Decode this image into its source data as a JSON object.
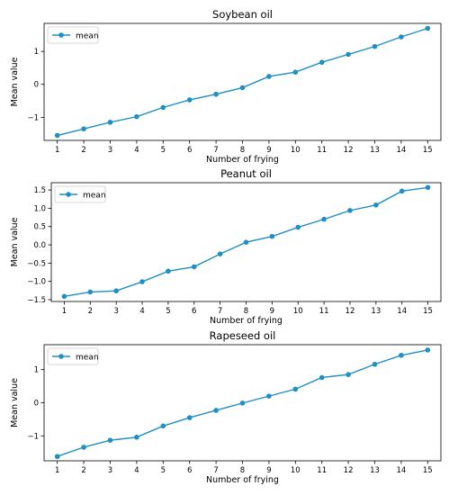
{
  "chart_data": [
    {
      "type": "line",
      "title": "Soybean oil",
      "xlabel": "Number of frying",
      "ylabel": "Mean value",
      "x": [
        1,
        2,
        3,
        4,
        5,
        6,
        7,
        8,
        9,
        10,
        11,
        12,
        13,
        14,
        15
      ],
      "series": [
        {
          "name": "mean",
          "color": "#1f8fc4",
          "values": [
            -1.55,
            -1.35,
            -1.15,
            -0.98,
            -0.7,
            -0.47,
            -0.3,
            -0.1,
            0.24,
            0.37,
            0.67,
            0.91,
            1.15,
            1.44,
            1.7
          ]
        }
      ],
      "ylim": [
        -1.7,
        1.85
      ],
      "yticks": [
        -1,
        0,
        1
      ],
      "ytick_labels": [
        "−1",
        "0",
        "1"
      ],
      "xlim": [
        0.5,
        15.5
      ],
      "legend": "top-left",
      "grid": false
    },
    {
      "type": "line",
      "title": "Peanut oil",
      "xlabel": "Number of frying",
      "ylabel": "Mean value",
      "x": [
        1,
        2,
        3,
        4,
        5,
        6,
        7,
        8,
        9,
        10,
        11,
        12,
        13,
        14,
        15
      ],
      "series": [
        {
          "name": "mean",
          "color": "#1f8fc4",
          "values": [
            -1.41,
            -1.29,
            -1.26,
            -1.01,
            -0.72,
            -0.6,
            -0.25,
            0.07,
            0.23,
            0.48,
            0.7,
            0.94,
            1.09,
            1.47,
            1.57
          ]
        }
      ],
      "ylim": [
        -1.55,
        1.7
      ],
      "yticks": [
        -1.5,
        -1.0,
        -0.5,
        0.0,
        0.5,
        1.0,
        1.5
      ],
      "ytick_labels": [
        "−1.5",
        "−1.0",
        "−0.5",
        "0.0",
        "0.5",
        "1.0",
        "1.5"
      ],
      "xlim": [
        0.5,
        15.5
      ],
      "legend": "top-left",
      "grid": false
    },
    {
      "type": "line",
      "title": "Rapeseed oil",
      "xlabel": "Number of frying",
      "ylabel": "Mean value",
      "x": [
        1,
        2,
        3,
        4,
        5,
        6,
        7,
        8,
        9,
        10,
        11,
        12,
        13,
        14,
        15
      ],
      "series": [
        {
          "name": "mean",
          "color": "#1f8fc4",
          "values": [
            -1.62,
            -1.34,
            -1.13,
            -1.04,
            -0.7,
            -0.45,
            -0.23,
            -0.01,
            0.2,
            0.41,
            0.76,
            0.85,
            1.16,
            1.43,
            1.59
          ]
        }
      ],
      "ylim": [
        -1.75,
        1.75
      ],
      "yticks": [
        -1,
        0,
        1
      ],
      "ytick_labels": [
        "−1",
        "0",
        "1"
      ],
      "xlim": [
        0.5,
        15.5
      ],
      "legend": "top-left",
      "grid": false
    }
  ]
}
